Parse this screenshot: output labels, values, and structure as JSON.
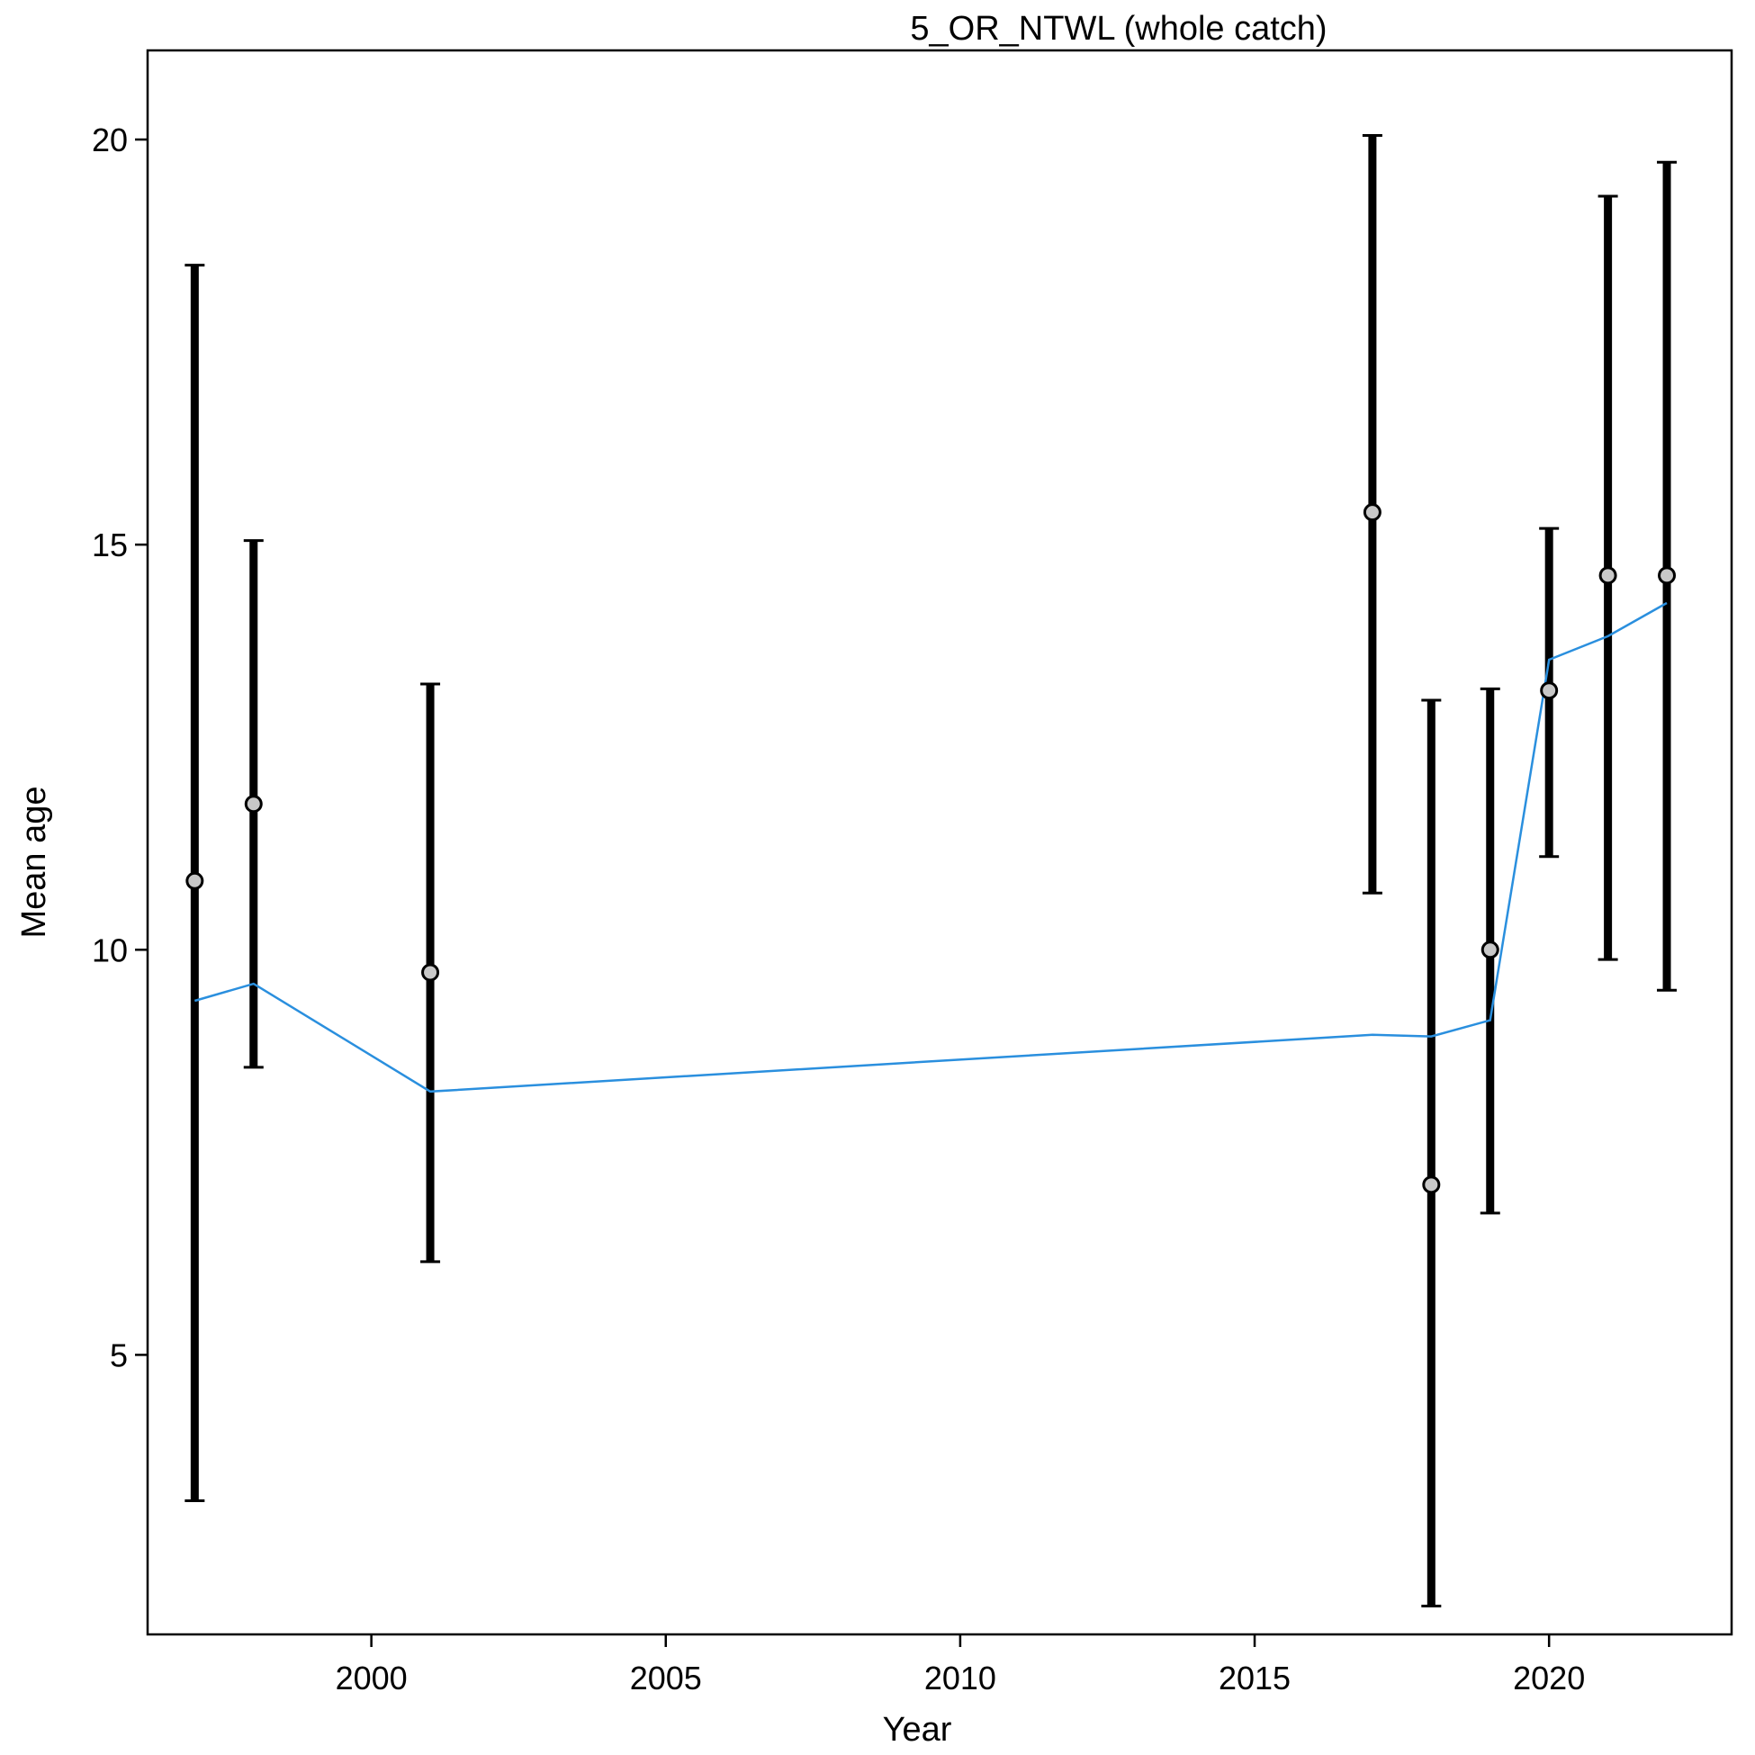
{
  "chart_data": {
    "type": "scatter",
    "title": "5_OR_NTWL (whole catch)",
    "xlabel": "Year",
    "ylabel": "Mean age",
    "xlim": [
      1996.2,
      2023.1
    ],
    "ylim": [
      1.55,
      21.1
    ],
    "x_ticks": [
      2000,
      2005,
      2010,
      2015,
      2020
    ],
    "y_ticks": [
      5,
      10,
      15,
      20
    ],
    "grid": false,
    "legend": "none",
    "colors": {
      "observed_fill": "#c8c8c8",
      "interval": "#000000",
      "expected_line": "#2a8fde"
    },
    "series": [
      {
        "kind": "observed",
        "points": [
          {
            "x": 1997,
            "y": 10.85,
            "lo": 3.2,
            "hi": 18.45
          },
          {
            "x": 1998,
            "y": 11.8,
            "lo": 8.55,
            "hi": 15.05
          },
          {
            "x": 2001,
            "y": 9.72,
            "lo": 6.15,
            "hi": 13.28
          },
          {
            "x": 2017,
            "y": 15.4,
            "lo": 10.7,
            "hi": 20.05
          },
          {
            "x": 2018,
            "y": 7.1,
            "lo": 1.9,
            "hi": 13.08
          },
          {
            "x": 2019,
            "y": 10.0,
            "lo": 6.75,
            "hi": 13.22
          },
          {
            "x": 2020,
            "y": 13.2,
            "lo": 11.15,
            "hi": 15.2
          },
          {
            "x": 2021,
            "y": 14.62,
            "lo": 9.88,
            "hi": 19.3
          },
          {
            "x": 2022,
            "y": 14.62,
            "lo": 9.5,
            "hi": 19.72
          }
        ]
      },
      {
        "kind": "expected",
        "points": [
          {
            "x": 1997,
            "y": 9.37
          },
          {
            "x": 1998,
            "y": 9.58
          },
          {
            "x": 2001,
            "y": 8.25
          },
          {
            "x": 2017,
            "y": 8.95
          },
          {
            "x": 2018,
            "y": 8.93
          },
          {
            "x": 2019,
            "y": 9.13
          },
          {
            "x": 2020,
            "y": 13.58
          },
          {
            "x": 2021,
            "y": 13.87
          },
          {
            "x": 2022,
            "y": 14.28
          }
        ]
      }
    ]
  }
}
